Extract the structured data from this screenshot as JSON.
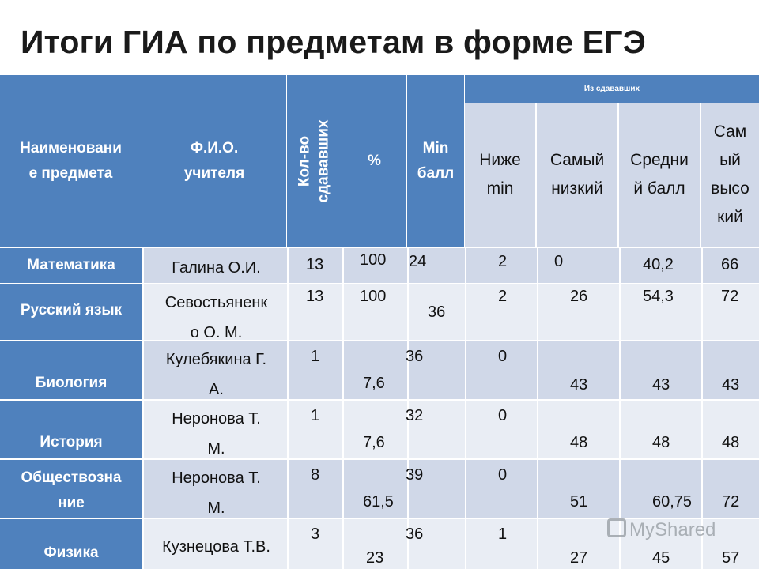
{
  "title": "Итоги ГИА по предметам в форме ЕГЭ",
  "table": {
    "headers": {
      "subject": "Наименовани\nе предмета",
      "teacher": "Ф.И.О.\nучителя",
      "count": "Кол-во\nсдававших",
      "percent": "%",
      "min": "Min\nбалл",
      "group": "Из сдававших",
      "below_min": "Ниже\nmin",
      "lowest": "Самый\nнизкий",
      "average": "Средни\nй балл",
      "highest": "Сам\nый\nвысо\nкий"
    },
    "rows": [
      {
        "subject": "Математика",
        "teacher": "Галина О.И.",
        "count": "13",
        "percent": "100",
        "min": "24",
        "below_min": "2",
        "lowest": "0",
        "average": "40,2",
        "highest": "66"
      },
      {
        "subject": "Русский язык",
        "teacher": "Севостьяненк\nо О. М.",
        "count": "13",
        "percent": "100",
        "min": "36",
        "below_min": "2",
        "lowest": "26",
        "average": "54,3",
        "highest": "72"
      },
      {
        "subject": "Биология",
        "teacher": "Кулебякина Г.\nА.",
        "count": "1",
        "percent": "7,6",
        "min": "36",
        "below_min": "0",
        "lowest": "43",
        "average": "43",
        "highest": "43"
      },
      {
        "subject": "История",
        "teacher": "Неронова Т.\nМ.",
        "count": "1",
        "percent": "7,6",
        "min": "32",
        "below_min": "0",
        "lowest": "48",
        "average": "48",
        "highest": "48"
      },
      {
        "subject": "Обществозна\nние",
        "teacher": "Неронова Т.\nМ.",
        "count": "8",
        "percent": "61,5",
        "min": "39",
        "below_min": "0",
        "lowest": "51",
        "average": "60,75",
        "highest": "72"
      },
      {
        "subject": "Физика",
        "teacher": "Кузнецова Т.В.",
        "count": "3",
        "percent": "23",
        "min": "36",
        "below_min": "1",
        "lowest": "27",
        "average": "45",
        "highest": "57"
      }
    ]
  },
  "watermark": "MyShared",
  "colors": {
    "header": "#4f81bd",
    "row_even": "#d0d8e8",
    "row_odd": "#e9edf4",
    "subheader": "#d0d8e8"
  }
}
